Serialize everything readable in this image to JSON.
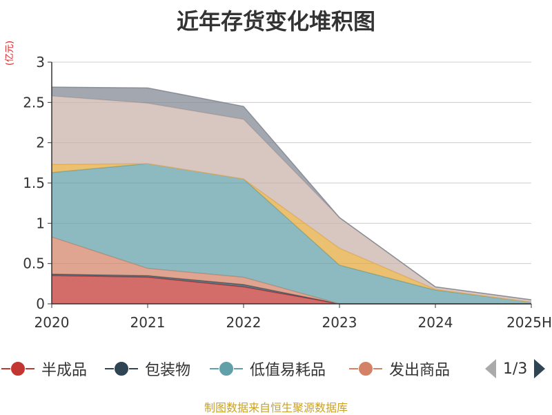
{
  "title": "近年存货变化堆积图",
  "unit_label": "(亿元)",
  "source": "制图数据来自恒生聚源数据库",
  "pager": {
    "text": "1/3"
  },
  "legend": [
    {
      "label": "半成品",
      "color": "#c23531"
    },
    {
      "label": "包装物",
      "color": "#2f4554"
    },
    {
      "label": "低值易耗品",
      "color": "#61a0a8"
    },
    {
      "label": "发出商品",
      "color": "#d48265"
    }
  ],
  "chart_data": {
    "type": "area",
    "stacked": true,
    "title": "近年存货变化堆积图",
    "ylabel": "(亿元)",
    "categories": [
      "2020",
      "2021",
      "2022",
      "2023",
      "2024",
      "2025H"
    ],
    "yticks": [
      "0",
      "0.5",
      "1",
      "1.5",
      "2",
      "2.5",
      "3"
    ],
    "ylim": [
      0,
      3
    ],
    "grid": true,
    "series": [
      {
        "name": "半成品",
        "color": "#c23531",
        "values": [
          0.35,
          0.33,
          0.21,
          0.0,
          0.0,
          0.0
        ]
      },
      {
        "name": "包装物",
        "color": "#2f4554",
        "values": [
          0.02,
          0.02,
          0.03,
          0.0,
          0.0,
          0.0
        ]
      },
      {
        "color": "#d48265",
        "values": [
          0.46,
          0.09,
          0.09,
          0.0,
          0.0,
          0.0
        ]
      },
      {
        "color": "#61a0a8",
        "values": [
          0.8,
          1.3,
          1.22,
          0.48,
          0.17,
          0.02
        ]
      },
      {
        "color": "#e5a83a",
        "values": [
          0.1,
          0.0,
          0.0,
          0.21,
          0.01,
          0.0
        ]
      },
      {
        "color": "#c9b1a9",
        "values": [
          0.85,
          0.75,
          0.74,
          0.38,
          0.03,
          0.03
        ]
      },
      {
        "color": "#7f8590",
        "values": [
          0.11,
          0.19,
          0.16,
          0.0,
          0.0,
          0.0
        ]
      }
    ]
  }
}
